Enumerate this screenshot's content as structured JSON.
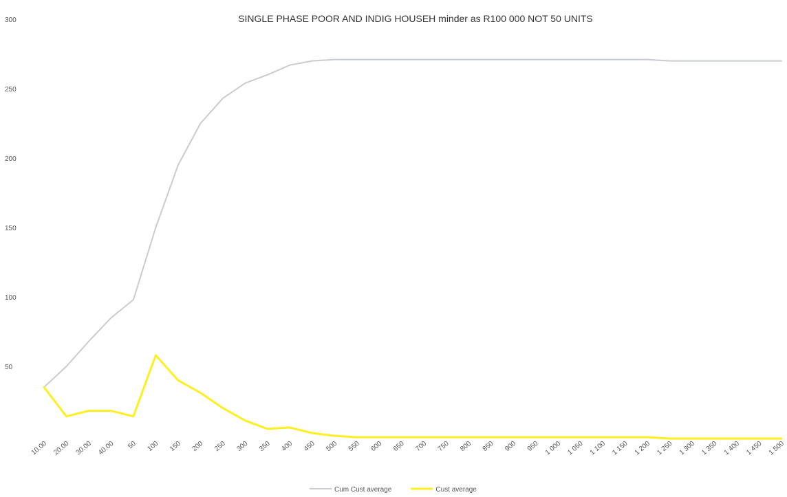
{
  "chart_data": {
    "type": "line",
    "title": "SINGLE PHASE POOR AND INDIG HOUSEH minder as R100 000 NOT 50 UNITS",
    "xlabel": "",
    "ylabel": "",
    "ylim": [
      0,
      300
    ],
    "yticks": [
      "",
      "50",
      "100",
      "150",
      "200",
      "250",
      "300"
    ],
    "categories": [
      "10.00",
      "20.00",
      "30.00",
      "40.00",
      "50",
      "100",
      "150",
      "200",
      "250",
      "300",
      "350",
      "400",
      "450",
      "500",
      "550",
      "600",
      "650",
      "700",
      "750",
      "800",
      "850",
      "900",
      "950",
      "1 000",
      "1 050",
      "1 100",
      "1 150",
      "1 200",
      "1 250",
      "1 300",
      "1 350",
      "1 400",
      "1 450",
      "1 500"
    ],
    "series": [
      {
        "name": "Cum Cust average",
        "color": "#c8ccd0",
        "values": [
          35,
          50,
          68,
          85,
          98,
          150,
          195,
          225,
          243,
          254,
          260,
          267,
          270,
          271,
          271,
          271,
          271,
          271,
          271,
          271,
          271,
          271,
          271,
          271,
          271,
          271,
          271,
          271,
          270,
          270,
          270,
          270,
          270,
          270
        ]
      },
      {
        "name": "Cust average",
        "color": "#ffee22",
        "values": [
          35,
          14,
          18,
          18,
          14,
          58,
          40,
          31,
          20,
          11,
          5,
          6,
          2,
          0,
          -1,
          -1,
          -1,
          -1,
          -1,
          -1,
          -1,
          -1,
          -1,
          -1,
          -1,
          -1,
          -1,
          -1,
          -2,
          -2,
          -2,
          -2,
          -2,
          -2
        ]
      }
    ],
    "grid": false,
    "legend": "bottom-center"
  }
}
